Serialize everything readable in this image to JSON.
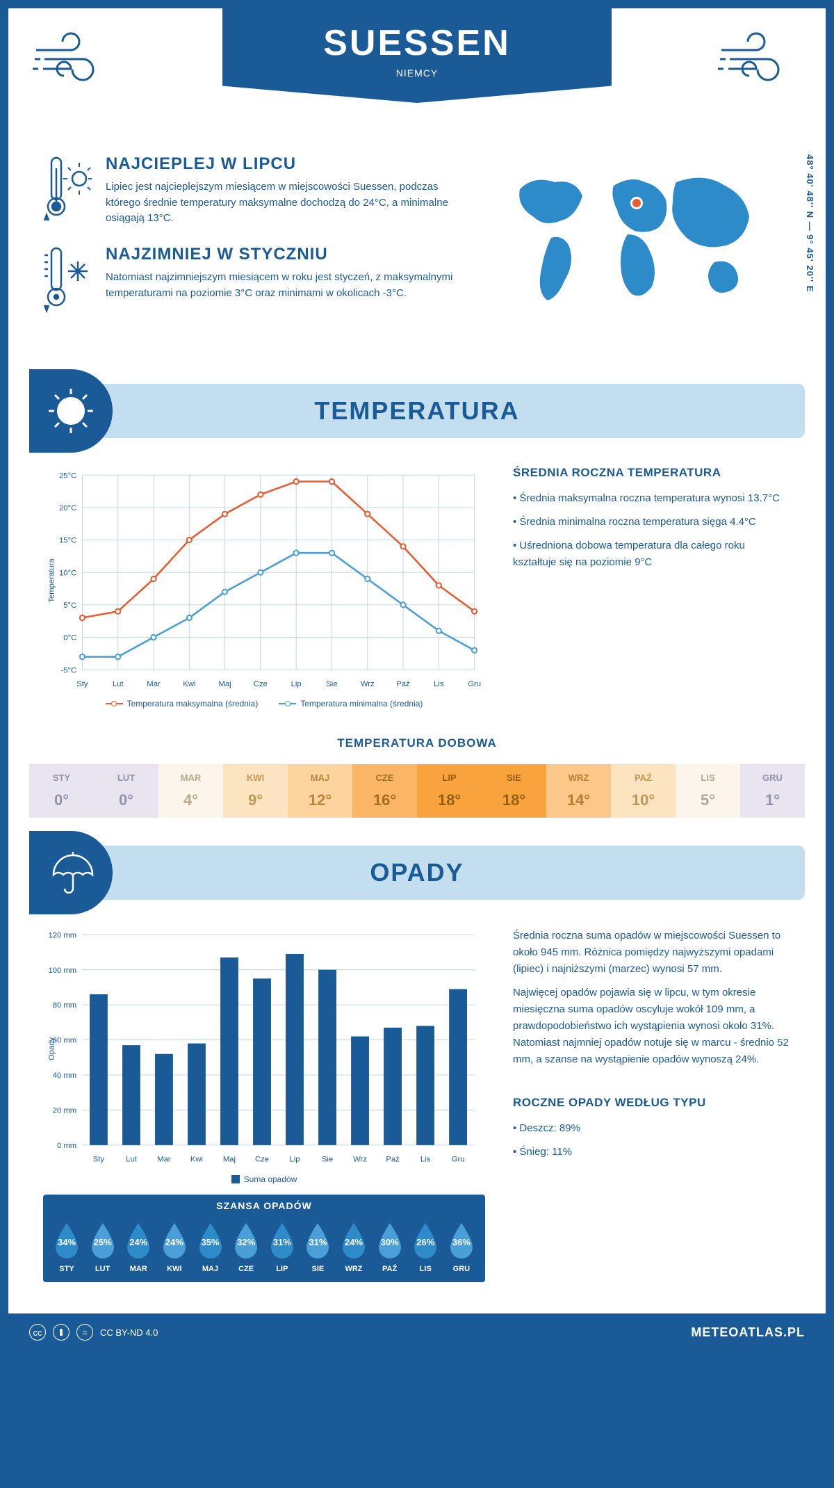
{
  "header": {
    "title": "SUESSEN",
    "country": "NIEMCY"
  },
  "coords": "48° 40' 48'' N — 9° 45' 20'' E",
  "warmest": {
    "heading": "NAJCIEPLEJ W LIPCU",
    "text": "Lipiec jest najcieplejszym miesiącem w miejscowości Suessen, podczas którego średnie temperatury maksymalne dochodzą do 24°C, a minimalne osiągają 13°C."
  },
  "coldest": {
    "heading": "NAJZIMNIEJ W STYCZNIU",
    "text": "Natomiast najzimniejszym miesiącem w roku jest styczeń, z maksymalnymi temperaturami na poziomie 3°C oraz minimami w okolicach -3°C."
  },
  "temp_section": {
    "heading": "TEMPERATURA",
    "annual_heading": "ŚREDNIA ROCZNA TEMPERATURA",
    "bullets": [
      "Średnia maksymalna roczna temperatura wynosi 13.7°C",
      "Średnia minimalna roczna temperatura sięga 4.4°C",
      "Uśredniona dobowa temperatura dla całego roku kształtuje się na poziomie 9°C"
    ],
    "daily_heading": "TEMPERATURA DOBOWA",
    "legend_max": "Temperatura maksymalna (średnia)",
    "legend_min": "Temperatura minimalna (średnia)",
    "ylabel": "Temperatura"
  },
  "precip_section": {
    "heading": "OPADY",
    "paragraphs": [
      "Średnia roczna suma opadów w miejscowości Suessen to około 945 mm. Różnica pomiędzy najwyższymi opadami (lipiec) i najniższymi (marzec) wynosi 57 mm.",
      "Najwięcej opadów pojawia się w lipcu, w tym okresie miesięczna suma opadów oscyluje wokół 109 mm, a prawdopodobieństwo ich wystąpienia wynosi około 31%. Natomiast najmniej opadów notuje się w marcu - średnio 52 mm, a szanse na wystąpienie opadów wynoszą 24%."
    ],
    "legend": "Suma opadów",
    "ylabel": "Opady",
    "chance_heading": "SZANSA OPADÓW",
    "by_type_heading": "ROCZNE OPADY WEDŁUG TYPU",
    "by_type": [
      "Deszcz: 89%",
      "Śnieg: 11%"
    ]
  },
  "months": [
    "Sty",
    "Lut",
    "Mar",
    "Kwi",
    "Maj",
    "Cze",
    "Lip",
    "Sie",
    "Wrz",
    "Paź",
    "Lis",
    "Gru"
  ],
  "months_upper": [
    "STY",
    "LUT",
    "MAR",
    "KWI",
    "MAJ",
    "CZE",
    "LIP",
    "SIE",
    "WRZ",
    "PAŹ",
    "LIS",
    "GRU"
  ],
  "temp_chart": {
    "type": "line",
    "ylim": [
      -5,
      25
    ],
    "ytick_step": 5,
    "max_color": "#e85c2f",
    "min_color": "#4a9fd8",
    "grid_color": "#c5d6e8",
    "axis_color": "#1a5a96",
    "max": [
      3,
      4,
      9,
      15,
      19,
      22,
      24,
      24,
      19,
      14,
      8,
      4
    ],
    "min": [
      -3,
      -3,
      0,
      3,
      7,
      10,
      13,
      13,
      9,
      5,
      1,
      -2
    ],
    "label_fontsize": 11
  },
  "daily_temp": {
    "values": [
      0,
      0,
      4,
      9,
      12,
      16,
      18,
      18,
      14,
      10,
      5,
      1
    ],
    "bg_colors": [
      "#e8e4f0",
      "#e8e4f0",
      "#fbf5ec",
      "#fde4c0",
      "#fdd49e",
      "#fbb567",
      "#f9a33f",
      "#f9a33f",
      "#fcc788",
      "#fde4c0",
      "#fbf5ec",
      "#e8e4f0"
    ],
    "text_colors": [
      "#9690a8",
      "#9690a8",
      "#b5a88f",
      "#c19656",
      "#b98540",
      "#a56d1f",
      "#965f10",
      "#965f10",
      "#b07e33",
      "#c19656",
      "#b5a88f",
      "#9690a8"
    ]
  },
  "precip_chart": {
    "type": "bar",
    "ylim": [
      0,
      120
    ],
    "ytick_step": 20,
    "bar_color": "#1a5a96",
    "grid_color": "#c5d6e8",
    "values": [
      86,
      57,
      52,
      58,
      107,
      95,
      109,
      100,
      62,
      67,
      68,
      89
    ],
    "bar_width": 0.55,
    "label_fontsize": 11
  },
  "precip_chance": {
    "values": [
      34,
      25,
      24,
      24,
      35,
      32,
      31,
      31,
      24,
      30,
      26,
      36
    ],
    "drop_color": "#2e8bc9",
    "drop_alt": "#4a9fd8"
  },
  "footer": {
    "license": "CC BY-ND 4.0",
    "brand": "METEOATLAS.PL"
  },
  "colors": {
    "primary": "#1a5a96",
    "light": "#c3deef",
    "accent": "#e85c2f"
  }
}
